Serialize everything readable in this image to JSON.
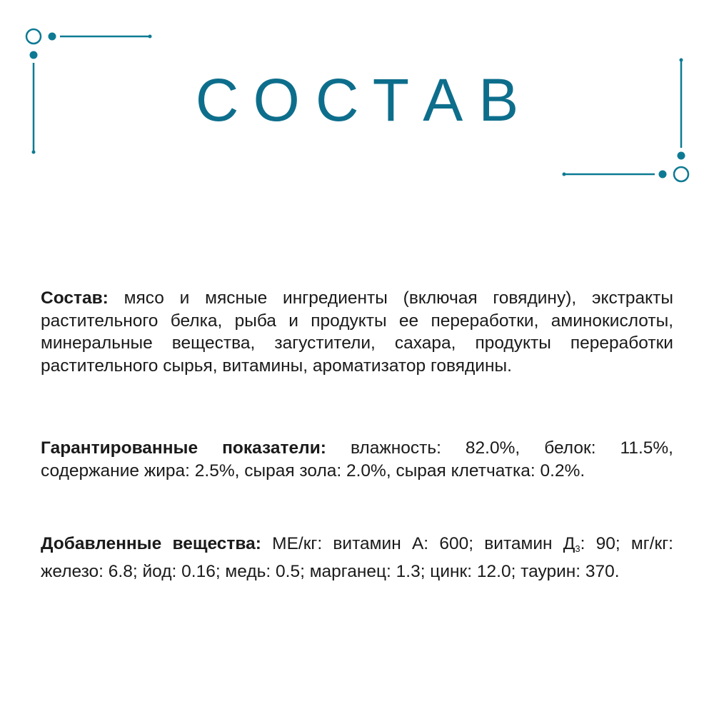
{
  "title": "СОСТАВ",
  "accent_color": "#0d7a93",
  "composition": {
    "label": "Состав:",
    "text": " мясо и мясные ингредиенты (включая говядину), экстракты растительного белка, рыба и продукты ее переработки, аминокислоты, минеральные вещества, загустители, сахара, продукты переработки растительного сырья, витамины, ароматизатор говядины."
  },
  "guaranteed": {
    "label": "Гарантированные показатели:",
    "text": " влажность: 82.0%, белок: 11.5%, содержание жира: 2.5%, сырая зола: 2.0%, сырая клетчатка: 0.2%."
  },
  "additives": {
    "label": "Добавленные вещества:",
    "text_before": " МЕ/кг: витамин А: 600; витамин Д",
    "subscript": "3",
    "text_after": ": 90; мг/кг: железо: 6.8; йод: 0.16; медь: 0.5; марганец: 1.3; цинк: 12.0; таурин: 370."
  }
}
